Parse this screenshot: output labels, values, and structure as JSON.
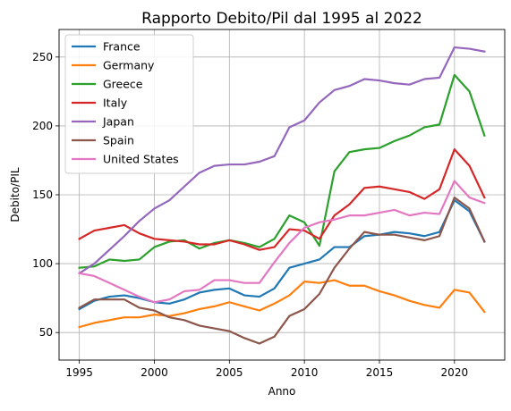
{
  "chart_data": {
    "type": "line",
    "title": "Rapporto Debito/Pil dal 1995 al 2022",
    "xlabel": "Anno",
    "ylabel": "Debito/PIL",
    "xlim": [
      1993.65,
      2023.35
    ],
    "ylim": [
      30,
      270
    ],
    "xticks": [
      1995,
      2000,
      2005,
      2010,
      2015,
      2020
    ],
    "yticks": [
      50,
      100,
      150,
      200,
      250
    ],
    "grid": true,
    "legend_position": "top-left",
    "x": [
      1995,
      1996,
      1997,
      1998,
      1999,
      2000,
      2001,
      2002,
      2003,
      2004,
      2005,
      2006,
      2007,
      2008,
      2009,
      2010,
      2011,
      2012,
      2013,
      2014,
      2015,
      2016,
      2017,
      2018,
      2019,
      2020,
      2021,
      2022
    ],
    "series": [
      {
        "name": "France",
        "color": "#1f77b4",
        "values": [
          67,
          73,
          76,
          77,
          75,
          72,
          71,
          74,
          79,
          81,
          82,
          77,
          76,
          82,
          97,
          100,
          103,
          112,
          112,
          120,
          121,
          123,
          122,
          120,
          123,
          146,
          138,
          116
        ]
      },
      {
        "name": "Germany",
        "color": "#ff7f0e",
        "values": [
          54,
          57,
          59,
          61,
          61,
          63,
          62,
          64,
          67,
          69,
          72,
          69,
          66,
          71,
          77,
          87,
          86,
          88,
          84,
          84,
          80,
          77,
          73,
          70,
          68,
          81,
          79,
          65
        ]
      },
      {
        "name": "Greece",
        "color": "#2ca02c",
        "values": [
          97,
          98,
          103,
          102,
          103,
          112,
          116,
          117,
          111,
          115,
          117,
          115,
          112,
          118,
          135,
          130,
          113,
          167,
          181,
          183,
          184,
          189,
          193,
          199,
          201,
          237,
          225,
          193
        ]
      },
      {
        "name": "Italy",
        "color": "#d62728",
        "values": [
          118,
          124,
          126,
          128,
          122,
          118,
          117,
          116,
          114,
          114,
          117,
          114,
          110,
          112,
          125,
          124,
          118,
          135,
          143,
          155,
          156,
          154,
          152,
          147,
          154,
          183,
          171,
          148
        ]
      },
      {
        "name": "Japan",
        "color": "#9467bd",
        "values": [
          93,
          100,
          110,
          120,
          131,
          140,
          146,
          156,
          166,
          171,
          172,
          172,
          174,
          178,
          199,
          204,
          217,
          226,
          229,
          234,
          233,
          231,
          230,
          234,
          235,
          257,
          256,
          254
        ]
      },
      {
        "name": "Spain",
        "color": "#8c564b",
        "values": [
          68,
          74,
          74,
          74,
          68,
          66,
          61,
          59,
          55,
          53,
          51,
          46,
          42,
          47,
          62,
          67,
          78,
          97,
          111,
          123,
          121,
          121,
          119,
          117,
          120,
          148,
          140,
          116
        ]
      },
      {
        "name": "United States",
        "color": "#e377c2",
        "values": [
          93,
          91,
          86,
          81,
          76,
          72,
          74,
          80,
          81,
          88,
          88,
          86,
          86,
          101,
          115,
          126,
          130,
          132,
          135,
          135,
          137,
          139,
          135,
          137,
          136,
          160,
          148,
          144
        ]
      }
    ]
  }
}
